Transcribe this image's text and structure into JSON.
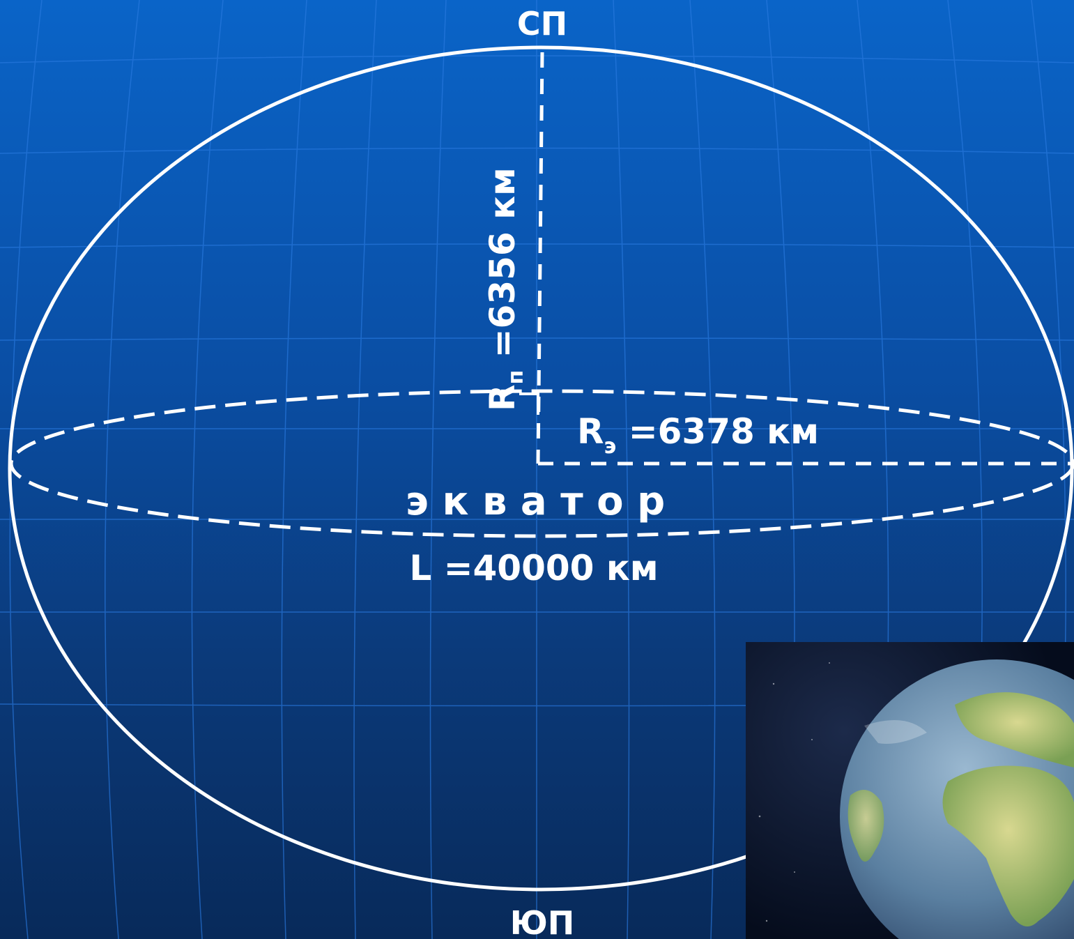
{
  "labels": {
    "north_pole": "СП",
    "south_pole": "ЮП",
    "polar_radius_symbol": "R",
    "polar_radius_subscript": "п",
    "polar_radius_value": " =6356 км",
    "equatorial_radius_symbol": "R",
    "equatorial_radius_subscript": "э",
    "equatorial_radius_value": " =6378 км",
    "equator": "э к в а т о р",
    "circumference": "L =40000 км"
  },
  "colors": {
    "background_top": "#0a64c8",
    "background_bottom": "#082a5a",
    "grid_line": "#2a7ae0",
    "outline": "#ffffff",
    "text": "#ffffff"
  },
  "photo": {
    "subject": "earth-globe-icon"
  }
}
